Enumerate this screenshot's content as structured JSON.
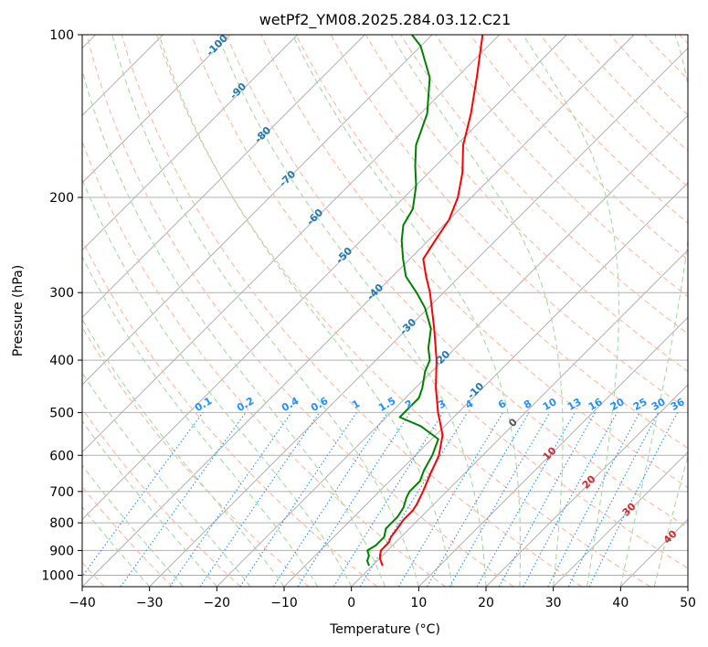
{
  "chart_data": {
    "type": "line",
    "chart_kind": "skew-T log-P sounding",
    "title": "wetPf2_YM08.2025.284.03.12.C21",
    "xlabel": "Temperature (°C)",
    "ylabel": "Pressure (hPa)",
    "xlim": [
      -40,
      50
    ],
    "ylim_hpa": [
      1050,
      100
    ],
    "x_ticks": [
      -40,
      -30,
      -20,
      -10,
      0,
      10,
      20,
      30,
      40,
      50
    ],
    "x_tick_labels": [
      "−40",
      "−30",
      "−20",
      "−10",
      "0",
      "10",
      "20",
      "30",
      "40",
      "50"
    ],
    "y_ticks": [
      100,
      200,
      300,
      400,
      500,
      600,
      700,
      800,
      900,
      1000
    ],
    "y_tick_labels": [
      "100",
      "200",
      "300",
      "400",
      "500",
      "600",
      "700",
      "800",
      "900",
      "1000"
    ],
    "grid": true,
    "series": [
      {
        "name": "Temperature",
        "color": "#ff0000",
        "points": [
          {
            "p": 960,
            "t": 1.5
          },
          {
            "p": 930,
            "t": 0.0
          },
          {
            "p": 900,
            "t": -1.0
          },
          {
            "p": 870,
            "t": -1.0
          },
          {
            "p": 850,
            "t": -1.5
          },
          {
            "p": 820,
            "t": -1.8
          },
          {
            "p": 790,
            "t": -2.2
          },
          {
            "p": 760,
            "t": -2.2
          },
          {
            "p": 740,
            "t": -2.5
          },
          {
            "p": 700,
            "t": -3.5
          },
          {
            "p": 650,
            "t": -5.0
          },
          {
            "p": 600,
            "t": -6.5
          },
          {
            "p": 550,
            "t": -9.0
          },
          {
            "p": 500,
            "t": -13.0
          },
          {
            "p": 450,
            "t": -17.0
          },
          {
            "p": 400,
            "t": -21.0
          },
          {
            "p": 350,
            "t": -26.0
          },
          {
            "p": 300,
            "t": -32.0
          },
          {
            "p": 280,
            "t": -35.0
          },
          {
            "p": 260,
            "t": -38.0
          },
          {
            "p": 240,
            "t": -39.0
          },
          {
            "p": 220,
            "t": -40.0
          },
          {
            "p": 200,
            "t": -42.0
          },
          {
            "p": 180,
            "t": -45.0
          },
          {
            "p": 160,
            "t": -49.0
          },
          {
            "p": 140,
            "t": -52.5
          },
          {
            "p": 120,
            "t": -57.0
          },
          {
            "p": 100,
            "t": -62.5
          }
        ]
      },
      {
        "name": "Dewpoint",
        "color": "#008000",
        "points": [
          {
            "p": 960,
            "t": -0.5
          },
          {
            "p": 940,
            "t": -1.5
          },
          {
            "p": 920,
            "t": -2.0
          },
          {
            "p": 900,
            "t": -3.0
          },
          {
            "p": 880,
            "t": -2.5
          },
          {
            "p": 850,
            "t": -2.5
          },
          {
            "p": 820,
            "t": -3.5
          },
          {
            "p": 800,
            "t": -3.5
          },
          {
            "p": 780,
            "t": -3.5
          },
          {
            "p": 750,
            "t": -4.0
          },
          {
            "p": 720,
            "t": -5.0
          },
          {
            "p": 700,
            "t": -5.5
          },
          {
            "p": 670,
            "t": -5.5
          },
          {
            "p": 640,
            "t": -6.5
          },
          {
            "p": 600,
            "t": -7.5
          },
          {
            "p": 560,
            "t": -9.0
          },
          {
            "p": 530,
            "t": -13.5
          },
          {
            "p": 510,
            "t": -18.0
          },
          {
            "p": 490,
            "t": -18.0
          },
          {
            "p": 470,
            "t": -18.0
          },
          {
            "p": 450,
            "t": -19.0
          },
          {
            "p": 420,
            "t": -21.0
          },
          {
            "p": 400,
            "t": -22.0
          },
          {
            "p": 380,
            "t": -24.0
          },
          {
            "p": 350,
            "t": -26.5
          },
          {
            "p": 320,
            "t": -30.5
          },
          {
            "p": 300,
            "t": -34.0
          },
          {
            "p": 280,
            "t": -38.0
          },
          {
            "p": 260,
            "t": -41.0
          },
          {
            "p": 240,
            "t": -44.0
          },
          {
            "p": 225,
            "t": -46.0
          },
          {
            "p": 210,
            "t": -47.0
          },
          {
            "p": 190,
            "t": -50.0
          },
          {
            "p": 175,
            "t": -53.0
          },
          {
            "p": 160,
            "t": -56.0
          },
          {
            "p": 140,
            "t": -59.0
          },
          {
            "p": 120,
            "t": -64.0
          },
          {
            "p": 105,
            "t": -70.0
          },
          {
            "p": 100,
            "t": -73.0
          }
        ]
      }
    ],
    "dry_adiabat_labels": [
      "-100",
      "-90",
      "-80",
      "-70",
      "-60",
      "-50",
      "-40",
      "-30",
      "-20",
      "-10",
      "0"
    ],
    "mixing_ratio_labels": [
      "0.1",
      "0.2",
      "0.4",
      "0.6",
      "1",
      "1.5",
      "2",
      "3",
      "4",
      "6",
      "8",
      "10",
      "13",
      "16",
      "20",
      "25",
      "30",
      "36"
    ],
    "moist_adiabat_labels": [
      "10",
      "20",
      "30",
      "40"
    ],
    "colors": {
      "isotherm_grid": "#b0b0b0",
      "isobar_grid": "#b0b0b0",
      "dry_adiabat": "#ffb6a0",
      "moist_adiabat": "#a6d8a6",
      "mixing_ratio": "#1e90ff",
      "dry_label": "#1f77b4",
      "moist_label": "#d62728",
      "zero_label": "#555555"
    }
  }
}
